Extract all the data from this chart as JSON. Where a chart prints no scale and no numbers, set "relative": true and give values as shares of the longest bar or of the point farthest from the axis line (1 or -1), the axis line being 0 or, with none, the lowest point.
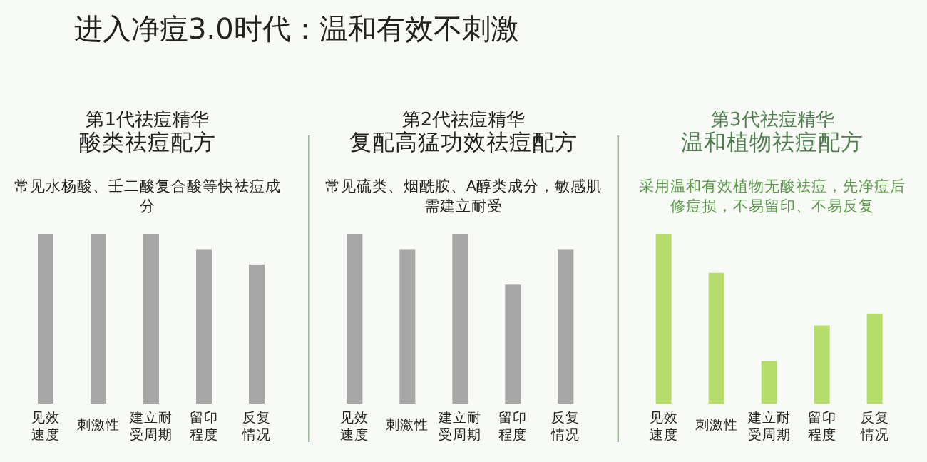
{
  "chart_data": [
    {
      "type": "bar",
      "relative": true,
      "title": "第1代祛痘精华",
      "subtitle": "酸类祛痘配方",
      "annotations": [
        "进入净痘3.0时代：温和有效不刺激",
        "常见水杨酸、壬二酸复合酸等快祛痘成分"
      ],
      "categories": [
        "见效速度",
        "刺激性",
        "建立耐受周期",
        "留印程度",
        "反复情况"
      ],
      "color": "#a6a6a6",
      "values": [
        1,
        1,
        1,
        0.91,
        0.82
      ]
    },
    {
      "type": "bar",
      "relative": true,
      "title": "第2代祛痘精华",
      "subtitle": "复配高猛功效祛痘配方",
      "annotations": [
        "常见硫类、烟酰胺、A醇类成分，敏感肌需建立耐受"
      ],
      "categories": [
        "见效速度",
        "刺激性",
        "建立耐受周期",
        "留印程度",
        "反复情况"
      ],
      "color": "#a6a6a6",
      "values": [
        1,
        0.91,
        1,
        0.7,
        0.91
      ]
    },
    {
      "type": "bar",
      "relative": true,
      "title": "第3代祛痘精华",
      "subtitle": "温和植物祛痘配方",
      "annotations": [
        "采用温和有效植物无酸祛痘，先净痘后修痘损，不易留印、不易反复"
      ],
      "categories": [
        "见效速度",
        "刺激性",
        "建立耐受周期",
        "留印程度",
        "反复情况"
      ],
      "color": "#b5dd6b",
      "values": [
        1,
        0.77,
        0.25,
        0.46,
        0.53
      ]
    }
  ]
}
